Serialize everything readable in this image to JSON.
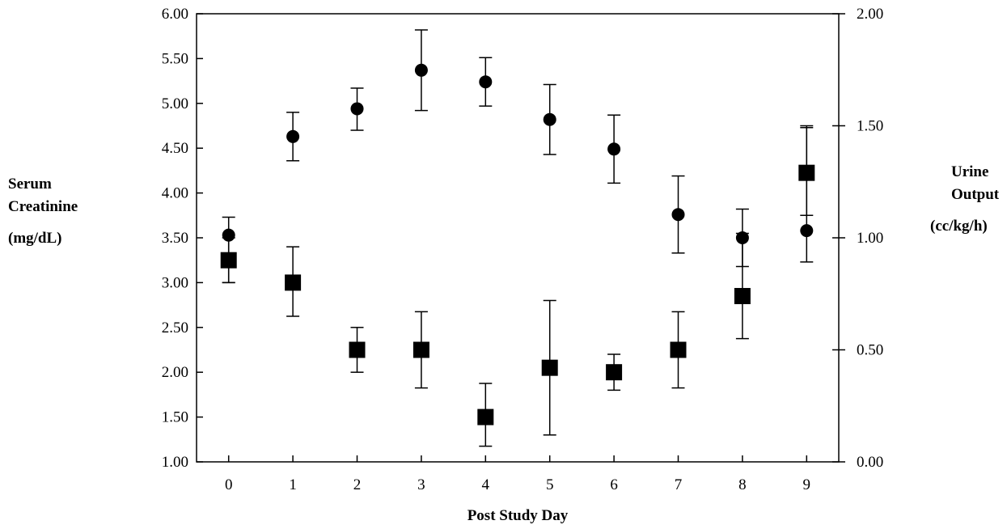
{
  "chart_data": {
    "type": "scatter",
    "x": [
      0,
      1,
      2,
      3,
      4,
      5,
      6,
      7,
      8,
      9
    ],
    "xlabel": "Post Study Day",
    "ylabel_left": [
      "Serum",
      "Creatinine",
      "(mg/dL)"
    ],
    "ylabel_right": [
      "Urine",
      "Output",
      "(cc/kg/h)"
    ],
    "ylim_left": [
      1.0,
      6.0
    ],
    "ylim_right": [
      0.0,
      2.0
    ],
    "xlim": [
      -0.5,
      9.5
    ],
    "left_ticks": [
      "1.00",
      "1.50",
      "2.00",
      "2.50",
      "3.00",
      "3.50",
      "4.00",
      "4.50",
      "5.00",
      "5.50",
      "6.00"
    ],
    "right_ticks": [
      "0.00",
      "0.50",
      "1.00",
      "1.50",
      "2.00"
    ],
    "x_ticks": [
      "0",
      "1",
      "2",
      "3",
      "4",
      "5",
      "6",
      "7",
      "8",
      "9"
    ],
    "grid": false,
    "series": [
      {
        "axis": "left",
        "marker": "circle",
        "values": [
          3.53,
          4.63,
          4.94,
          5.37,
          5.24,
          4.82,
          4.49,
          3.76,
          3.5,
          3.58
        ],
        "error_upper": [
          3.73,
          4.9,
          5.17,
          5.82,
          5.51,
          5.21,
          4.87,
          4.19,
          3.82,
          4.73
        ],
        "error_lower": [
          3.0,
          4.36,
          4.7,
          4.92,
          4.97,
          4.43,
          4.11,
          3.33,
          3.18,
          3.23
        ]
      },
      {
        "axis": "right",
        "marker": "square",
        "values": [
          0.9,
          0.8,
          0.5,
          0.5,
          0.2,
          0.42,
          0.4,
          0.5,
          0.74,
          1.29
        ],
        "error_upper": [
          1.0,
          0.96,
          0.6,
          0.67,
          0.35,
          0.72,
          0.48,
          0.67,
          1.02,
          1.5
        ],
        "error_lower": [
          0.8,
          0.65,
          0.4,
          0.33,
          0.07,
          0.12,
          0.32,
          0.33,
          0.55,
          1.1
        ]
      }
    ]
  }
}
